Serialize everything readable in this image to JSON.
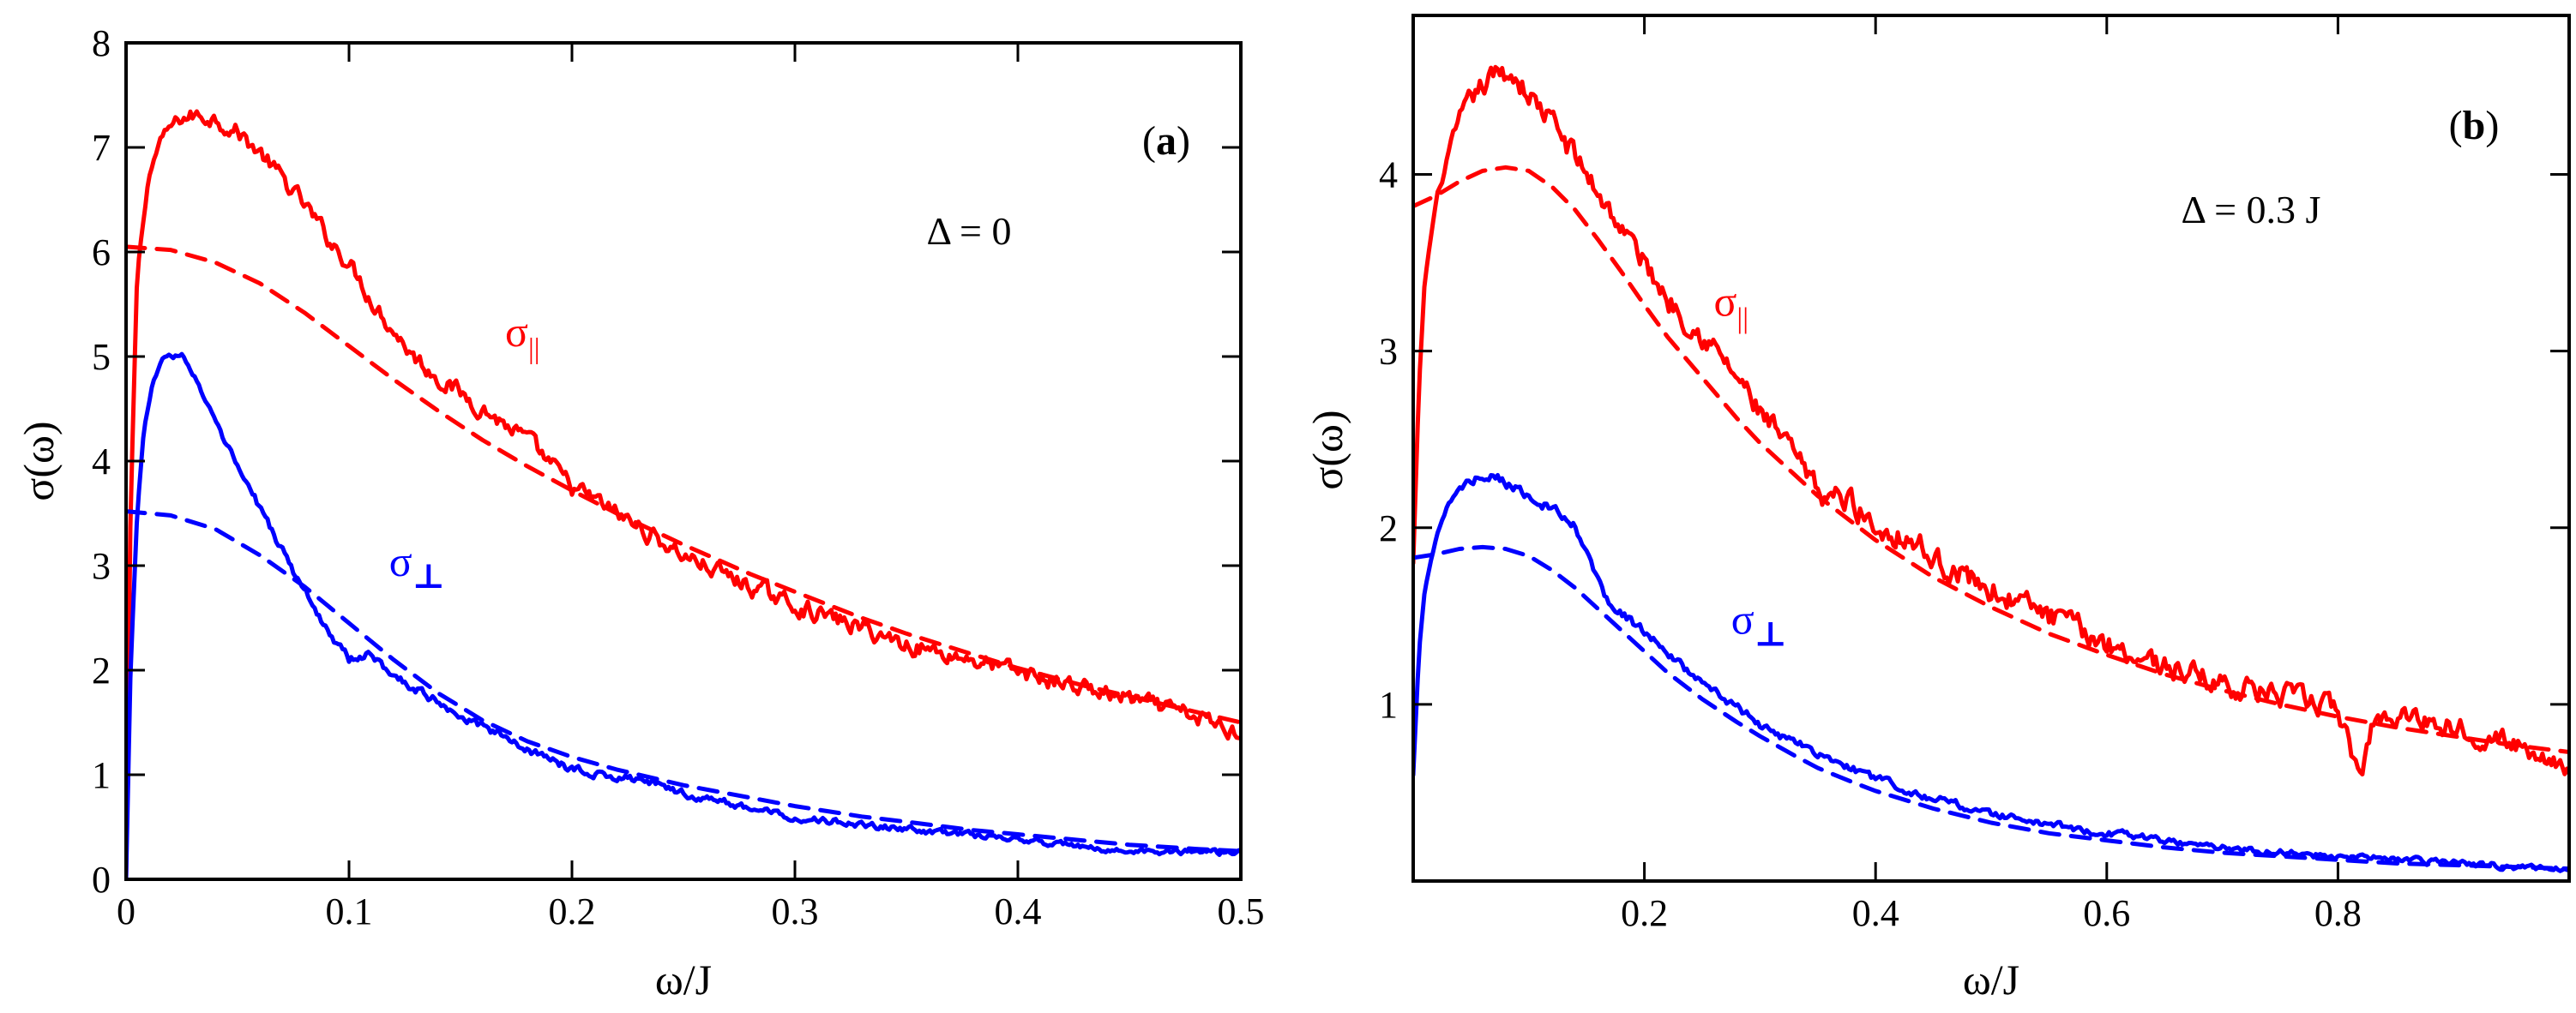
{
  "chart_data": [
    {
      "type": "line",
      "panel": "a",
      "panel_label": "(a)",
      "annotation": "Δ = 0",
      "xlabel": "ω/J",
      "ylabel": "σ(ω)",
      "xlim": [
        0,
        0.5
      ],
      "ylim": [
        0,
        8
      ],
      "xticks": [
        0,
        0.1,
        0.2,
        0.3,
        0.4,
        0.5
      ],
      "xtick_labels": [
        "0",
        "0.1",
        "0.2",
        "0.3",
        "0.4",
        "0.5"
      ],
      "yticks": [
        0,
        1,
        2,
        3,
        4,
        5,
        6,
        7,
        8
      ],
      "ytick_labels": [
        "0",
        "1",
        "2",
        "3",
        "4",
        "5",
        "6",
        "7",
        "8"
      ],
      "series": [
        {
          "name": "σ∥ (solid)",
          "color": "#ff0000",
          "style": "solid",
          "noise": 0.07,
          "x": [
            0,
            0.002,
            0.005,
            0.01,
            0.015,
            0.02,
            0.025,
            0.03,
            0.035,
            0.04,
            0.05,
            0.06,
            0.07,
            0.08,
            0.09,
            0.1,
            0.11,
            0.12,
            0.13,
            0.14,
            0.15,
            0.16,
            0.18,
            0.2,
            0.22,
            0.25,
            0.28,
            0.3,
            0.33,
            0.35,
            0.38,
            0.4,
            0.42,
            0.45,
            0.48,
            0.5
          ],
          "y": [
            0,
            3.5,
            5.8,
            6.7,
            7.05,
            7.2,
            7.28,
            7.3,
            7.3,
            7.28,
            7.15,
            6.95,
            6.7,
            6.45,
            6.15,
            5.9,
            5.55,
            5.25,
            4.98,
            4.8,
            4.65,
            4.5,
            4.2,
            3.75,
            3.5,
            3.1,
            2.8,
            2.62,
            2.4,
            2.25,
            2.1,
            1.98,
            1.88,
            1.72,
            1.55,
            1.4
          ]
        },
        {
          "name": "σ∥ (dashed)",
          "color": "#ff0000",
          "style": "dashed",
          "x": [
            0,
            0.02,
            0.04,
            0.06,
            0.08,
            0.1,
            0.12,
            0.14,
            0.16,
            0.18,
            0.2,
            0.22,
            0.25,
            0.28,
            0.3,
            0.33,
            0.35,
            0.38,
            0.4,
            0.43,
            0.45,
            0.48,
            0.5
          ],
          "y": [
            6.05,
            6.02,
            5.9,
            5.7,
            5.42,
            5.1,
            4.78,
            4.48,
            4.2,
            3.95,
            3.72,
            3.5,
            3.2,
            2.92,
            2.75,
            2.5,
            2.35,
            2.15,
            2.02,
            1.85,
            1.75,
            1.6,
            1.5
          ]
        },
        {
          "name": "σ⊥ (solid)",
          "color": "#0000ff",
          "style": "solid",
          "noise": 0.035,
          "x": [
            0,
            0.002,
            0.005,
            0.008,
            0.012,
            0.016,
            0.02,
            0.025,
            0.03,
            0.035,
            0.04,
            0.05,
            0.06,
            0.07,
            0.08,
            0.09,
            0.1,
            0.11,
            0.12,
            0.14,
            0.16,
            0.18,
            0.2,
            0.23,
            0.25,
            0.28,
            0.3,
            0.33,
            0.35,
            0.38,
            0.4,
            0.43,
            0.45,
            0.48,
            0.5
          ],
          "y": [
            0,
            2.0,
            3.5,
            4.3,
            4.75,
            4.95,
            5.02,
            5.0,
            4.85,
            4.6,
            4.35,
            3.95,
            3.55,
            3.15,
            2.75,
            2.4,
            2.1,
            2.15,
            1.95,
            1.7,
            1.45,
            1.25,
            1.05,
            0.95,
            0.82,
            0.68,
            0.6,
            0.52,
            0.48,
            0.42,
            0.38,
            0.3,
            0.27,
            0.26,
            0.25
          ]
        },
        {
          "name": "σ⊥ (dashed)",
          "color": "#0000ff",
          "style": "dashed",
          "x": [
            0,
            0.02,
            0.04,
            0.06,
            0.08,
            0.1,
            0.12,
            0.14,
            0.16,
            0.18,
            0.2,
            0.22,
            0.25,
            0.28,
            0.3,
            0.33,
            0.35,
            0.38,
            0.4,
            0.43,
            0.45,
            0.48,
            0.5
          ],
          "y": [
            3.52,
            3.48,
            3.35,
            3.1,
            2.8,
            2.45,
            2.1,
            1.78,
            1.52,
            1.32,
            1.17,
            1.05,
            0.9,
            0.78,
            0.7,
            0.6,
            0.55,
            0.47,
            0.43,
            0.37,
            0.33,
            0.29,
            0.27
          ]
        }
      ],
      "labels": [
        {
          "text": "σ",
          "sub": "||",
          "color": "#ff0000",
          "x": 0.17,
          "y": 5.1
        },
        {
          "text": "σ",
          "sub": "⊥",
          "color": "#0000ff",
          "x": 0.118,
          "y": 2.9
        }
      ]
    },
    {
      "type": "line",
      "panel": "b",
      "panel_label": "(b)",
      "annotation": "Δ = 0.3 J",
      "xlabel": "ω/J",
      "ylabel": "σ(ω)",
      "xlim": [
        0,
        1.0
      ],
      "ylim": [
        0,
        4.9
      ],
      "xticks": [
        0.2,
        0.4,
        0.6,
        0.8
      ],
      "xtick_labels": [
        "0.2",
        "0.4",
        "0.6",
        "0.8"
      ],
      "yticks": [
        1,
        2,
        3,
        4
      ],
      "ytick_labels": [
        "1",
        "2",
        "3",
        "4"
      ],
      "series": [
        {
          "name": "σ∥ (solid)",
          "color": "#ff0000",
          "style": "solid",
          "noise": 0.06,
          "x": [
            0,
            0.005,
            0.01,
            0.02,
            0.03,
            0.04,
            0.05,
            0.06,
            0.07,
            0.08,
            0.09,
            0.1,
            0.12,
            0.14,
            0.16,
            0.18,
            0.2,
            0.22,
            0.25,
            0.28,
            0.3,
            0.33,
            0.35,
            0.38,
            0.4,
            0.43,
            0.45,
            0.5,
            0.55,
            0.6,
            0.65,
            0.7,
            0.75,
            0.8,
            0.81,
            0.82,
            0.83,
            0.85,
            0.9,
            0.95,
            1.0
          ],
          "y": [
            1.8,
            2.8,
            3.4,
            3.85,
            4.1,
            4.3,
            4.42,
            4.5,
            4.55,
            4.58,
            4.55,
            4.45,
            4.3,
            4.1,
            3.9,
            3.7,
            3.5,
            3.3,
            3.1,
            2.85,
            2.65,
            2.4,
            2.2,
            2.15,
            2.0,
            1.95,
            1.82,
            1.65,
            1.5,
            1.35,
            1.22,
            1.12,
            1.05,
            0.98,
            0.75,
            0.6,
            0.9,
            0.95,
            0.88,
            0.78,
            0.65
          ]
        },
        {
          "name": "σ∥ (dashed)",
          "color": "#ff0000",
          "style": "dashed",
          "x": [
            0,
            0.02,
            0.04,
            0.06,
            0.08,
            0.1,
            0.12,
            0.14,
            0.16,
            0.18,
            0.2,
            0.22,
            0.25,
            0.28,
            0.3,
            0.33,
            0.35,
            0.38,
            0.4,
            0.45,
            0.5,
            0.55,
            0.6,
            0.65,
            0.7,
            0.75,
            0.8,
            0.85,
            0.9,
            0.95,
            1.0
          ],
          "y": [
            3.82,
            3.88,
            3.96,
            4.02,
            4.04,
            4.02,
            3.93,
            3.8,
            3.63,
            3.45,
            3.26,
            3.08,
            2.85,
            2.62,
            2.48,
            2.3,
            2.18,
            2.03,
            1.93,
            1.72,
            1.55,
            1.4,
            1.28,
            1.17,
            1.08,
            1.0,
            0.93,
            0.87,
            0.82,
            0.77,
            0.73
          ]
        },
        {
          "name": "σ⊥ (solid)",
          "color": "#0000ff",
          "style": "solid",
          "noise": 0.025,
          "x": [
            0,
            0.005,
            0.01,
            0.02,
            0.03,
            0.04,
            0.05,
            0.06,
            0.07,
            0.08,
            0.09,
            0.1,
            0.12,
            0.14,
            0.15,
            0.17,
            0.2,
            0.22,
            0.25,
            0.28,
            0.3,
            0.35,
            0.4,
            0.45,
            0.5,
            0.55,
            0.6,
            0.65,
            0.7,
            0.75,
            0.8,
            0.85,
            0.9,
            0.95,
            1.0
          ],
          "y": [
            0.6,
            1.3,
            1.65,
            1.95,
            2.12,
            2.22,
            2.27,
            2.3,
            2.29,
            2.26,
            2.22,
            2.18,
            2.1,
            2.0,
            1.85,
            1.55,
            1.42,
            1.28,
            1.12,
            0.98,
            0.88,
            0.72,
            0.58,
            0.47,
            0.38,
            0.32,
            0.27,
            0.23,
            0.19,
            0.16,
            0.14,
            0.12,
            0.1,
            0.08,
            0.07
          ]
        },
        {
          "name": "σ⊥ (dashed)",
          "color": "#0000ff",
          "style": "dashed",
          "x": [
            0,
            0.02,
            0.04,
            0.06,
            0.08,
            0.1,
            0.12,
            0.14,
            0.16,
            0.18,
            0.2,
            0.22,
            0.25,
            0.28,
            0.3,
            0.33,
            0.35,
            0.38,
            0.4,
            0.45,
            0.5,
            0.55,
            0.6,
            0.65,
            0.7,
            0.75,
            0.8,
            0.85,
            0.9,
            0.95,
            1.0
          ],
          "y": [
            1.83,
            1.85,
            1.88,
            1.89,
            1.88,
            1.84,
            1.76,
            1.66,
            1.54,
            1.42,
            1.3,
            1.18,
            1.03,
            0.9,
            0.82,
            0.71,
            0.64,
            0.56,
            0.51,
            0.41,
            0.33,
            0.27,
            0.23,
            0.19,
            0.16,
            0.14,
            0.12,
            0.1,
            0.09,
            0.08,
            0.07
          ]
        }
      ],
      "labels": [
        {
          "text": "σ",
          "sub": "||",
          "color": "#ff0000",
          "x": 0.26,
          "y": 3.2
        },
        {
          "text": "σ",
          "sub": "⊥",
          "color": "#0000ff",
          "x": 0.275,
          "y": 1.4
        }
      ]
    }
  ]
}
